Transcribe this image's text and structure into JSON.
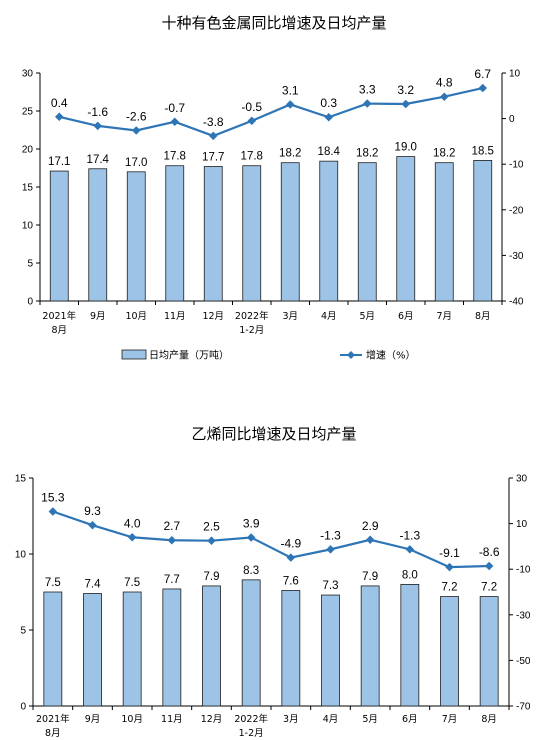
{
  "chart_data": [
    {
      "type": "bar+line",
      "title": "十种有色金属同比增速及日均产量",
      "categories": [
        [
          "2021年",
          "8月"
        ],
        [
          "9月"
        ],
        [
          "10月"
        ],
        [
          "11月"
        ],
        [
          "12月"
        ],
        [
          "2022年",
          "1-2月"
        ],
        [
          "3月"
        ],
        [
          "4月"
        ],
        [
          "5月"
        ],
        [
          "6月"
        ],
        [
          "7月"
        ],
        [
          "8月"
        ]
      ],
      "series": [
        {
          "name": "日均产量（万吨）",
          "type": "bar",
          "axis": "left",
          "values": [
            17.1,
            17.4,
            17.0,
            17.8,
            17.7,
            17.8,
            18.2,
            18.4,
            18.2,
            19.0,
            18.2,
            18.5
          ],
          "labels": [
            "17.1",
            "17.4",
            "17.0",
            "17.8",
            "17.7",
            "17.8",
            "18.2",
            "18.4",
            "18.2",
            "19.0",
            "18.2",
            "18.5"
          ]
        },
        {
          "name": "增速（%）",
          "type": "line",
          "axis": "right",
          "values": [
            0.4,
            -1.6,
            -2.6,
            -0.7,
            -3.8,
            -0.5,
            3.1,
            0.3,
            3.3,
            3.2,
            4.8,
            6.7
          ],
          "labels": [
            "0.4",
            "-1.6",
            "-2.6",
            "-0.7",
            "-3.8",
            "-0.5",
            "3.1",
            "0.3",
            "3.3",
            "3.2",
            "4.8",
            "6.7"
          ]
        }
      ],
      "y_left": {
        "min": 0,
        "max": 30,
        "ticks": [
          0,
          5,
          10,
          15,
          20,
          25,
          30
        ]
      },
      "y_right": {
        "min": -40,
        "max": 10,
        "ticks": [
          -40,
          -30,
          -20,
          -10,
          0,
          10
        ]
      },
      "legend": "bottom",
      "grid": false,
      "colors": {
        "bar_fill": "#9dc3e6",
        "bar_stroke": "#1f1f1f",
        "line": "#2e75b6"
      }
    },
    {
      "type": "bar+line",
      "title": "乙烯同比增速及日均产量",
      "categories": [
        [
          "2021年",
          "8月"
        ],
        [
          "9月"
        ],
        [
          "10月"
        ],
        [
          "11月"
        ],
        [
          "12月"
        ],
        [
          "2022年",
          "1-2月"
        ],
        [
          "3月"
        ],
        [
          "4月"
        ],
        [
          "5月"
        ],
        [
          "6月"
        ],
        [
          "7月"
        ],
        [
          "8月"
        ]
      ],
      "series": [
        {
          "type": "bar",
          "axis": "left",
          "values": [
            7.5,
            7.4,
            7.5,
            7.7,
            7.9,
            8.3,
            7.6,
            7.3,
            7.9,
            8.0,
            7.2,
            7.2
          ],
          "labels": [
            "7.5",
            "7.4",
            "7.5",
            "7.7",
            "7.9",
            "8.3",
            "7.6",
            "7.3",
            "7.9",
            "8.0",
            "7.2",
            "7.2"
          ]
        },
        {
          "type": "line",
          "axis": "right",
          "values": [
            15.3,
            9.3,
            4.0,
            2.7,
            2.5,
            3.9,
            -4.9,
            -1.3,
            2.9,
            -1.3,
            -9.1,
            -8.6
          ],
          "labels": [
            "15.3",
            "9.3",
            "4.0",
            "2.7",
            "2.5",
            "3.9",
            "-4.9",
            "-1.3",
            "2.9",
            "-1.3",
            "-9.1",
            "-8.6"
          ]
        }
      ],
      "y_left": {
        "min": 0,
        "max": 15,
        "ticks": [
          0,
          5,
          10,
          15
        ]
      },
      "y_right": {
        "min": -70,
        "max": 30,
        "ticks": [
          -70,
          -50,
          -30,
          -10,
          10,
          30
        ]
      },
      "grid": false,
      "colors": {
        "bar_fill": "#9dc3e6",
        "bar_stroke": "#1f1f1f",
        "line": "#2e75b6"
      }
    }
  ]
}
